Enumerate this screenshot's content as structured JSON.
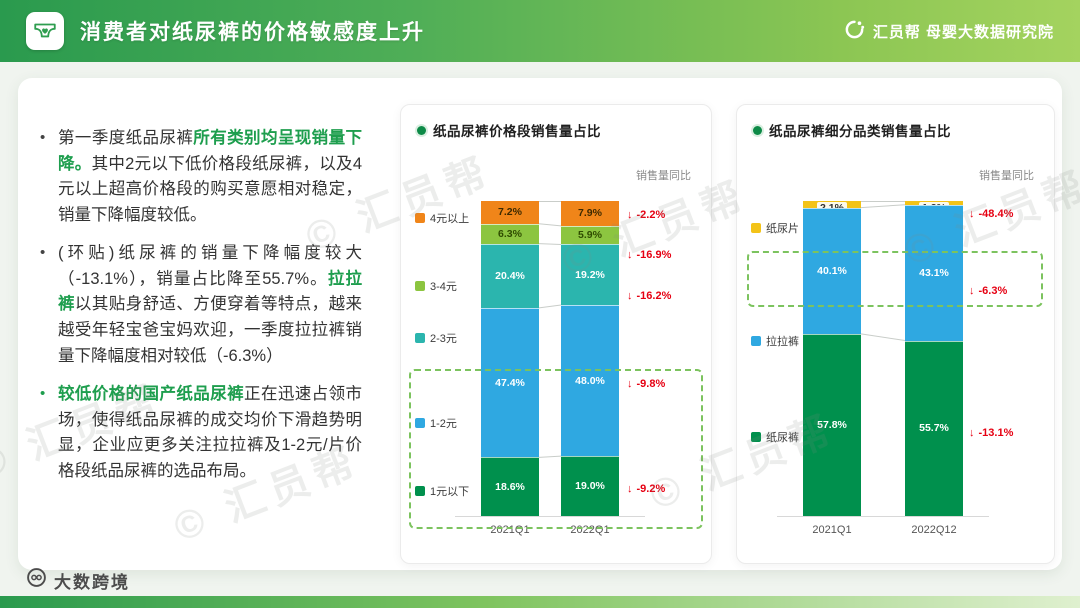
{
  "header": {
    "title": "消费者对纸尿裤的价格敏感度上升",
    "brand": "汇员帮 母婴大数据研究院"
  },
  "bullets": [
    {
      "marker_color": "#444444",
      "segments": [
        {
          "text": "第一季度纸品尿裤",
          "em": false
        },
        {
          "text": "所有类别均呈现销量下降。",
          "em": true
        },
        {
          "text": "其中2元以下低价格段纸尿裤，以及4元以上超高价格段的购买意愿相对稳定，销量下降幅度较低。",
          "em": false
        }
      ]
    },
    {
      "marker_color": "#444444",
      "segments": [
        {
          "text": "(环贴)纸尿裤的销量下降幅度较大（-13.1%），销量占比降至55.7%。",
          "em": false
        },
        {
          "text": "拉拉裤",
          "em": true
        },
        {
          "text": "以其贴身舒适、方便穿着等特点，越来越受年轻宝爸宝妈欢迎，一季度拉拉裤销量下降幅度相对较低（-6.3%）",
          "em": false
        }
      ]
    },
    {
      "marker_color": "#1e9e4e",
      "segments": [
        {
          "text": "较低价格的国产纸品尿裤",
          "em": true
        },
        {
          "text": "正在迅速占领市场，使得纸品尿裤的成交均价下滑趋势明显，企业应更多关注拉拉裤及1-2元/片价格段纸品尿裤的选品布局。",
          "em": false
        }
      ]
    }
  ],
  "chart_data": [
    {
      "type": "bar",
      "stacked": true,
      "title": "纸品尿裤价格段销售量占比",
      "yoy_label": "销售量同比",
      "unit": "%",
      "categories": [
        "2021Q1",
        "2022Q1"
      ],
      "ylim": [
        0,
        100
      ],
      "legend_position": "left",
      "series": [
        {
          "name": "4元以上",
          "color": "#F08519",
          "text_color": "#3d2a00",
          "values": [
            7.2,
            7.9
          ],
          "yoy": "-2.2%"
        },
        {
          "name": "3-4元",
          "color": "#8CC540",
          "text_color": "#2f4d00",
          "values": [
            6.3,
            5.9
          ],
          "yoy": "-16.9%"
        },
        {
          "name": "2-3元",
          "color": "#2BB5AE",
          "text_color": "#ffffff",
          "values": [
            20.4,
            19.2
          ],
          "yoy": "-16.2%"
        },
        {
          "name": "1-2元",
          "color": "#2FA8E1",
          "text_color": "#ffffff",
          "values": [
            47.4,
            48.0
          ],
          "yoy": "-9.8%"
        },
        {
          "name": "1元以下",
          "color": "#00904D",
          "text_color": "#ffffff",
          "values": [
            18.6,
            19.0
          ],
          "yoy": "-9.2%"
        }
      ]
    },
    {
      "type": "bar",
      "stacked": true,
      "title": "纸品尿裤细分品类销售量占比",
      "yoy_label": "销售量同比",
      "unit": "%",
      "categories": [
        "2021Q1",
        "2022Q12"
      ],
      "ylim": [
        0,
        100
      ],
      "legend_position": "left",
      "series": [
        {
          "name": "纸尿片",
          "color": "#F3C318",
          "text_color": "#4d3c00",
          "values": [
            2.1,
            1.2
          ],
          "yoy": "-48.4%"
        },
        {
          "name": "拉拉裤",
          "color": "#2FA8E1",
          "text_color": "#ffffff",
          "values": [
            40.1,
            43.1
          ],
          "yoy": "-6.3%"
        },
        {
          "name": "纸尿裤",
          "color": "#00904D",
          "text_color": "#ffffff",
          "values": [
            57.8,
            55.7
          ],
          "yoy": "-13.1%"
        }
      ]
    }
  ],
  "colors": {
    "accent_green": "#1e9e4e",
    "decline_red": "#e60012",
    "header_gradient_start": "#2a9a4e",
    "header_gradient_end": "#a4d35f"
  },
  "watermark": {
    "text": "汇员帮"
  },
  "footer": {
    "logo": "大数跨境"
  }
}
